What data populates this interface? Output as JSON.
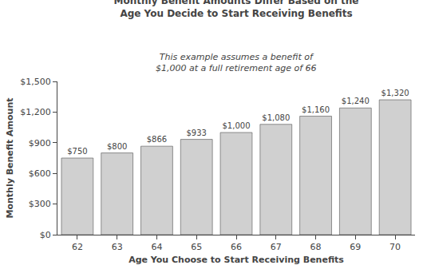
{
  "chart_data": {
    "type": "bar",
    "title": "Monthly Benefit Amounts Differ Based on the\nAge You Decide to Start Receiving Benefits",
    "subtitle": "This example assumes a benefit of\n$1,000 at a full retirement age of 66",
    "xlabel": "Age You Choose to Start Receiving Benefits",
    "ylabel": "Monthly Benefit Amount",
    "x": [
      62,
      63,
      64,
      65,
      66,
      67,
      68,
      69,
      70
    ],
    "values": [
      750,
      800,
      866,
      933,
      1000,
      1080,
      1160,
      1240,
      1320
    ],
    "value_labels": [
      "$750",
      "$800",
      "$866",
      "$933",
      "$1,000",
      "$1,080",
      "$1,160",
      "$1,240",
      "$1,320"
    ],
    "color": "#d0d0d0",
    "xlim": [
      61.5,
      70.5
    ],
    "xticks": [
      62,
      63,
      64,
      65,
      66,
      67,
      68,
      69,
      70
    ],
    "ylim": [
      0,
      1500
    ],
    "yticks": [
      {
        "value": 0,
        "label": "$0"
      },
      {
        "value": 300,
        "label": "$300"
      },
      {
        "value": 600,
        "label": "$600"
      },
      {
        "value": 900,
        "label": "$900"
      },
      {
        "value": 1200,
        "label": "$1,200"
      },
      {
        "value": 1500,
        "label": "$1,500"
      }
    ],
    "grid": false,
    "data_labels": true
  }
}
